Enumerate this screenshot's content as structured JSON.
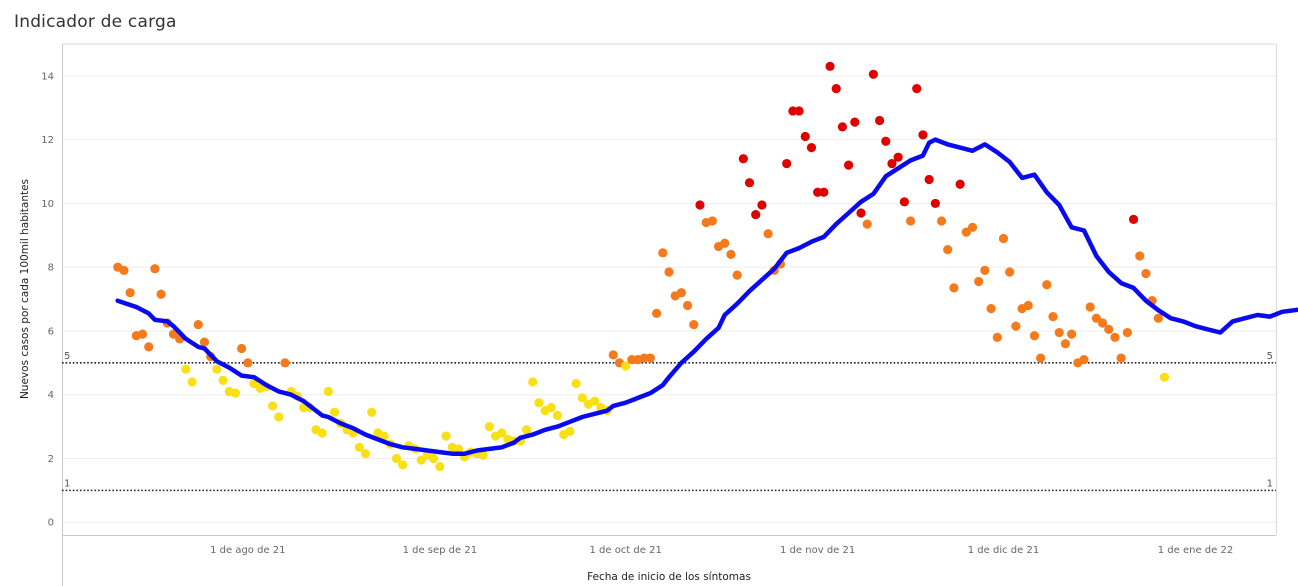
{
  "colors": {
    "line": "#0a0aee",
    "yellow": "#f8e015",
    "orange": "#f57a1b",
    "red": "#df0000",
    "grid": "#eeeeee",
    "ref": "#222222"
  },
  "chart_data": {
    "type": "scatter",
    "title": "Indicador de carga",
    "xlabel": "Fecha de inicio de los síntomas",
    "ylabel": "Nuevos casos por cada 100mil habitantes",
    "ylim": [
      -0.4,
      15
    ],
    "yticks": [
      0,
      2,
      4,
      6,
      8,
      10,
      12,
      14
    ],
    "xlim": [
      "2021-07-02",
      "2022-01-14"
    ],
    "xticks": [
      {
        "date": "2021-08-01",
        "label": "1 de ago de 21"
      },
      {
        "date": "2021-09-01",
        "label": "1 de sep de 21"
      },
      {
        "date": "2021-10-01",
        "label": "1 de oct de 21"
      },
      {
        "date": "2021-11-01",
        "label": "1 de nov de 21"
      },
      {
        "date": "2021-12-01",
        "label": "1 de dic de 21"
      },
      {
        "date": "2022-01-01",
        "label": "1 de ene de 22"
      }
    ],
    "reference_lines": [
      {
        "value": 5,
        "label": "5",
        "style": "dotted"
      },
      {
        "value": 1,
        "label": "1",
        "style": "dotted"
      }
    ],
    "grid": true,
    "start_date": "2021-07-11",
    "points": [
      8.0,
      7.9,
      7.2,
      5.85,
      5.9,
      5.5,
      7.95,
      7.15,
      6.25,
      5.9,
      5.75,
      4.8,
      4.4,
      6.2,
      5.65,
      5.2,
      4.8,
      4.45,
      4.1,
      4.05,
      5.45,
      5.0,
      4.35,
      4.2,
      4.25,
      3.65,
      3.3,
      5.0,
      4.1,
      3.95,
      3.6,
      3.6,
      2.9,
      2.8,
      4.1,
      3.45,
      3.1,
      2.9,
      2.8,
      2.35,
      2.15,
      3.45,
      2.8,
      2.7,
      2.45,
      2.0,
      1.8,
      2.4,
      2.3,
      1.95,
      2.1,
      2.0,
      1.75,
      2.7,
      2.35,
      2.3,
      2.05,
      2.2,
      2.15,
      2.1,
      3.0,
      2.7,
      2.8,
      2.6,
      2.55,
      2.55,
      2.9,
      4.4,
      3.75,
      3.5,
      3.6,
      3.35,
      2.75,
      2.85,
      4.35,
      3.9,
      3.7,
      3.8,
      3.6,
      3.5,
      5.25,
      5.0,
      4.9,
      5.1,
      5.1,
      5.15,
      5.15,
      6.55,
      8.45,
      7.85,
      7.1,
      7.2,
      6.8,
      6.2,
      9.95,
      9.4,
      9.45,
      8.65,
      8.75,
      8.4,
      7.75,
      11.4,
      10.65,
      9.65,
      9.95,
      9.05,
      7.9,
      8.1,
      11.25,
      12.9,
      12.9,
      12.1,
      11.75,
      10.35,
      10.35,
      14.3,
      13.6,
      12.4,
      11.2,
      12.55,
      9.7,
      9.35,
      14.05,
      12.6,
      11.95,
      11.25,
      11.45,
      10.05,
      9.45,
      13.6,
      12.15,
      10.75,
      10.0,
      9.45,
      8.55,
      7.35,
      10.6,
      9.1,
      9.25,
      7.55,
      7.9,
      6.7,
      5.8,
      8.9,
      7.85,
      6.15,
      6.7,
      6.8,
      5.85,
      5.15,
      7.45,
      6.45,
      5.95,
      5.6,
      5.9,
      5.0,
      5.1,
      6.75,
      6.4,
      6.25,
      6.05,
      5.8,
      5.15,
      5.95,
      9.5,
      8.35,
      7.8,
      6.95,
      6.4,
      4.55
    ],
    "moving_average": [
      [
        0,
        6.95
      ],
      [
        3,
        6.75
      ],
      [
        5,
        6.55
      ],
      [
        6,
        6.35
      ],
      [
        8,
        6.3
      ],
      [
        9,
        6.15
      ],
      [
        11,
        5.75
      ],
      [
        13,
        5.5
      ],
      [
        14,
        5.45
      ],
      [
        16,
        5.05
      ],
      [
        18,
        4.85
      ],
      [
        20,
        4.6
      ],
      [
        22,
        4.55
      ],
      [
        24,
        4.3
      ],
      [
        26,
        4.1
      ],
      [
        28,
        4.0
      ],
      [
        30,
        3.8
      ],
      [
        31,
        3.65
      ],
      [
        33,
        3.35
      ],
      [
        34,
        3.3
      ],
      [
        36,
        3.1
      ],
      [
        38,
        2.95
      ],
      [
        40,
        2.75
      ],
      [
        42,
        2.6
      ],
      [
        44,
        2.45
      ],
      [
        46,
        2.35
      ],
      [
        48,
        2.3
      ],
      [
        50,
        2.25
      ],
      [
        52,
        2.2
      ],
      [
        54,
        2.15
      ],
      [
        56,
        2.15
      ],
      [
        58,
        2.25
      ],
      [
        60,
        2.3
      ],
      [
        62,
        2.35
      ],
      [
        64,
        2.5
      ],
      [
        65,
        2.65
      ],
      [
        67,
        2.75
      ],
      [
        69,
        2.9
      ],
      [
        71,
        3.0
      ],
      [
        73,
        3.15
      ],
      [
        75,
        3.3
      ],
      [
        77,
        3.4
      ],
      [
        79,
        3.5
      ],
      [
        80,
        3.65
      ],
      [
        82,
        3.75
      ],
      [
        84,
        3.9
      ],
      [
        86,
        4.05
      ],
      [
        88,
        4.3
      ],
      [
        89,
        4.55
      ],
      [
        91,
        5.0
      ],
      [
        93,
        5.35
      ],
      [
        95,
        5.75
      ],
      [
        97,
        6.1
      ],
      [
        98,
        6.5
      ],
      [
        100,
        6.85
      ],
      [
        102,
        7.25
      ],
      [
        104,
        7.6
      ],
      [
        106,
        7.95
      ],
      [
        108,
        8.45
      ],
      [
        110,
        8.6
      ],
      [
        112,
        8.8
      ],
      [
        114,
        8.95
      ],
      [
        116,
        9.35
      ],
      [
        118,
        9.7
      ],
      [
        120,
        10.05
      ],
      [
        122,
        10.3
      ],
      [
        124,
        10.85
      ],
      [
        126,
        11.1
      ],
      [
        128,
        11.35
      ],
      [
        130,
        11.5
      ],
      [
        131,
        11.9
      ],
      [
        132,
        12.0
      ],
      [
        134,
        11.85
      ],
      [
        136,
        11.75
      ],
      [
        138,
        11.65
      ],
      [
        140,
        11.85
      ],
      [
        142,
        11.6
      ],
      [
        144,
        11.3
      ],
      [
        146,
        10.8
      ],
      [
        148,
        10.9
      ],
      [
        150,
        10.35
      ],
      [
        152,
        9.95
      ],
      [
        154,
        9.25
      ],
      [
        156,
        9.15
      ],
      [
        158,
        8.35
      ],
      [
        160,
        7.85
      ],
      [
        162,
        7.5
      ],
      [
        164,
        7.35
      ],
      [
        166,
        6.95
      ],
      [
        168,
        6.65
      ],
      [
        170,
        6.4
      ],
      [
        172,
        6.3
      ],
      [
        174,
        6.15
      ],
      [
        176,
        6.05
      ],
      [
        178,
        5.95
      ],
      [
        180,
        6.3
      ],
      [
        182,
        6.4
      ],
      [
        184,
        6.5
      ],
      [
        186,
        6.45
      ],
      [
        188,
        6.6
      ],
      [
        190,
        6.65
      ],
      [
        192,
        6.7
      ],
      [
        194,
        6.85
      ]
    ]
  }
}
